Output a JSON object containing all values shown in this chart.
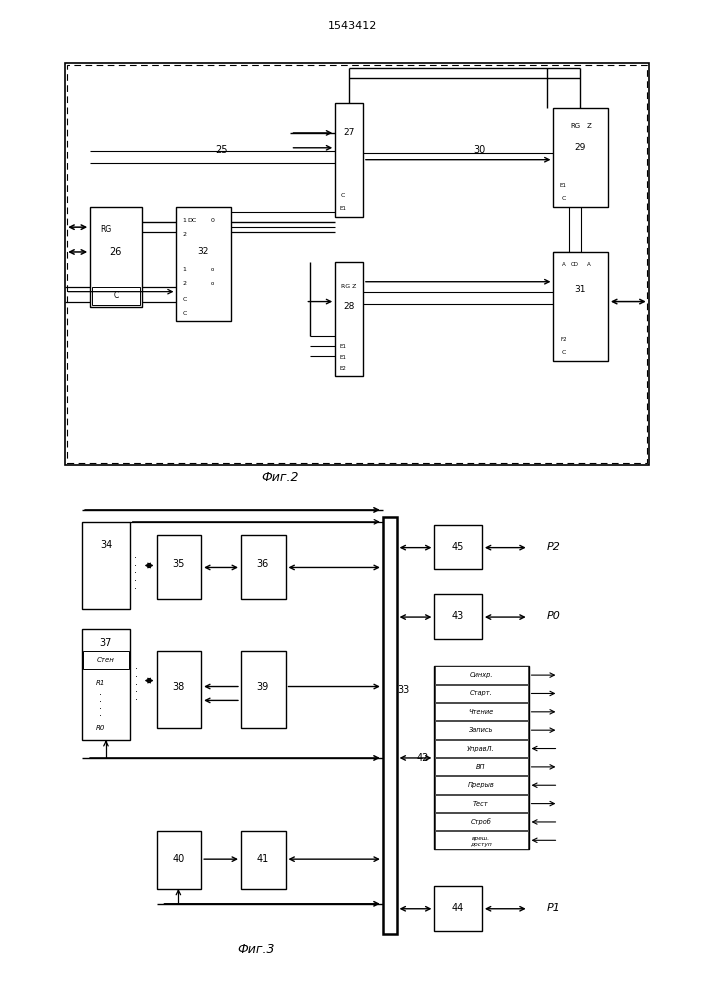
{
  "title": "1543412",
  "fig2_label": "Фиг.2",
  "fig3_label": "Фиг.3",
  "bg_color": "#ffffff"
}
